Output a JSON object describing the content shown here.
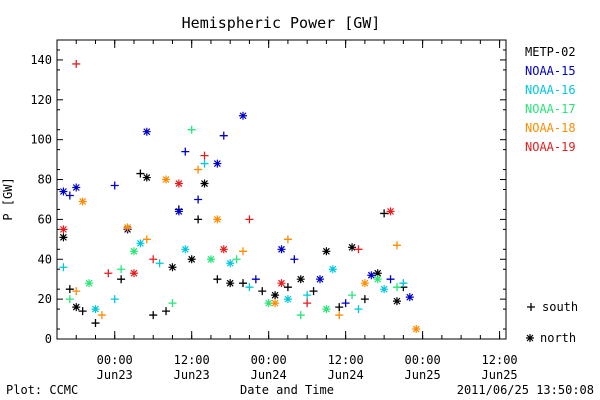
{
  "chart_data": {
    "type": "scatter",
    "title": "Hemispheric Power [GW]",
    "ylabel": "P [GW]",
    "xlabel": "Date and Time",
    "ylim": [
      0,
      150
    ],
    "xlim": [
      "2011-06-22 15:00",
      "2011-06-25 13:00"
    ],
    "grid": false,
    "legend_position": "right",
    "x_ticks": [
      {
        "time": "00:00",
        "date": "Jun23",
        "x": "2011-06-23 00:00"
      },
      {
        "time": "12:00",
        "date": "Jun23",
        "x": "2011-06-23 12:00"
      },
      {
        "time": "00:00",
        "date": "Jun24",
        "x": "2011-06-24 00:00"
      },
      {
        "time": "12:00",
        "date": "Jun24",
        "x": "2011-06-24 12:00"
      },
      {
        "time": "00:00",
        "date": "Jun25",
        "x": "2011-06-25 00:00"
      },
      {
        "time": "12:00",
        "date": "Jun25",
        "x": "2011-06-25 12:00"
      }
    ],
    "y_ticks": [
      0,
      20,
      40,
      60,
      80,
      100,
      120,
      140
    ],
    "markers": {
      "south": "+",
      "north": "*"
    },
    "series": [
      {
        "name": "METP-02",
        "color": "#000000",
        "points": [
          {
            "x": "2011-06-22 17:00",
            "y": 25,
            "h": "south"
          },
          {
            "x": "2011-06-22 19:00",
            "y": 14,
            "h": "south"
          },
          {
            "x": "2011-06-22 21:00",
            "y": 8,
            "h": "south"
          },
          {
            "x": "2011-06-23 01:00",
            "y": 30,
            "h": "south"
          },
          {
            "x": "2011-06-23 04:00",
            "y": 83,
            "h": "south"
          },
          {
            "x": "2011-06-23 06:00",
            "y": 12,
            "h": "south"
          },
          {
            "x": "2011-06-23 08:00",
            "y": 14,
            "h": "south"
          },
          {
            "x": "2011-06-23 10:00",
            "y": 65,
            "h": "south"
          },
          {
            "x": "2011-06-23 13:00",
            "y": 60,
            "h": "south"
          },
          {
            "x": "2011-06-23 16:00",
            "y": 30,
            "h": "south"
          },
          {
            "x": "2011-06-23 20:00",
            "y": 28,
            "h": "south"
          },
          {
            "x": "2011-06-23 23:00",
            "y": 24,
            "h": "south"
          },
          {
            "x": "2011-06-24 03:00",
            "y": 26,
            "h": "south"
          },
          {
            "x": "2011-06-24 07:00",
            "y": 24,
            "h": "south"
          },
          {
            "x": "2011-06-24 11:00",
            "y": 16,
            "h": "south"
          },
          {
            "x": "2011-06-24 15:00",
            "y": 20,
            "h": "south"
          },
          {
            "x": "2011-06-24 18:00",
            "y": 63,
            "h": "south"
          },
          {
            "x": "2011-06-24 21:00",
            "y": 26,
            "h": "south"
          },
          {
            "x": "2011-06-22 16:00",
            "y": 51,
            "h": "north"
          },
          {
            "x": "2011-06-22 18:00",
            "y": 16,
            "h": "north"
          },
          {
            "x": "2011-06-23 02:00",
            "y": 55,
            "h": "north"
          },
          {
            "x": "2011-06-23 05:00",
            "y": 81,
            "h": "north"
          },
          {
            "x": "2011-06-23 09:00",
            "y": 36,
            "h": "north"
          },
          {
            "x": "2011-06-23 12:00",
            "y": 40,
            "h": "north"
          },
          {
            "x": "2011-06-23 14:00",
            "y": 78,
            "h": "north"
          },
          {
            "x": "2011-06-23 18:00",
            "y": 28,
            "h": "north"
          },
          {
            "x": "2011-06-24 01:00",
            "y": 22,
            "h": "north"
          },
          {
            "x": "2011-06-24 05:00",
            "y": 30,
            "h": "north"
          },
          {
            "x": "2011-06-24 09:00",
            "y": 44,
            "h": "north"
          },
          {
            "x": "2011-06-24 13:00",
            "y": 46,
            "h": "north"
          },
          {
            "x": "2011-06-24 17:00",
            "y": 33,
            "h": "north"
          },
          {
            "x": "2011-06-24 20:00",
            "y": 19,
            "h": "north"
          }
        ]
      },
      {
        "name": "NOAA-15",
        "color": "#0000c8",
        "points": [
          {
            "x": "2011-06-22 17:00",
            "y": 72,
            "h": "south"
          },
          {
            "x": "2011-06-23 00:00",
            "y": 77,
            "h": "south"
          },
          {
            "x": "2011-06-23 02:00",
            "y": 55,
            "h": "south"
          },
          {
            "x": "2011-06-23 11:00",
            "y": 94,
            "h": "south"
          },
          {
            "x": "2011-06-23 13:00",
            "y": 70,
            "h": "south"
          },
          {
            "x": "2011-06-23 17:00",
            "y": 102,
            "h": "south"
          },
          {
            "x": "2011-06-23 22:00",
            "y": 30,
            "h": "south"
          },
          {
            "x": "2011-06-24 04:00",
            "y": 40,
            "h": "south"
          },
          {
            "x": "2011-06-24 12:00",
            "y": 18,
            "h": "south"
          },
          {
            "x": "2011-06-24 19:00",
            "y": 30,
            "h": "south"
          },
          {
            "x": "2011-06-22 16:00",
            "y": 74,
            "h": "north"
          },
          {
            "x": "2011-06-22 18:00",
            "y": 76,
            "h": "north"
          },
          {
            "x": "2011-06-23 05:00",
            "y": 104,
            "h": "north"
          },
          {
            "x": "2011-06-23 10:00",
            "y": 64,
            "h": "north"
          },
          {
            "x": "2011-06-23 16:00",
            "y": 88,
            "h": "north"
          },
          {
            "x": "2011-06-23 20:00",
            "y": 112,
            "h": "north"
          },
          {
            "x": "2011-06-24 02:00",
            "y": 45,
            "h": "north"
          },
          {
            "x": "2011-06-24 08:00",
            "y": 30,
            "h": "north"
          },
          {
            "x": "2011-06-24 16:00",
            "y": 32,
            "h": "north"
          },
          {
            "x": "2011-06-24 22:00",
            "y": 21,
            "h": "north"
          }
        ]
      },
      {
        "name": "NOAA-16",
        "color": "#00c8dc",
        "points": [
          {
            "x": "2011-06-22 16:00",
            "y": 36,
            "h": "south"
          },
          {
            "x": "2011-06-23 00:00",
            "y": 20,
            "h": "south"
          },
          {
            "x": "2011-06-23 07:00",
            "y": 38,
            "h": "south"
          },
          {
            "x": "2011-06-23 14:00",
            "y": 88,
            "h": "south"
          },
          {
            "x": "2011-06-23 21:00",
            "y": 26,
            "h": "south"
          },
          {
            "x": "2011-06-24 06:00",
            "y": 22,
            "h": "south"
          },
          {
            "x": "2011-06-24 14:00",
            "y": 15,
            "h": "south"
          },
          {
            "x": "2011-06-24 21:00",
            "y": 28,
            "h": "south"
          },
          {
            "x": "2011-06-22 21:00",
            "y": 15,
            "h": "north"
          },
          {
            "x": "2011-06-23 04:00",
            "y": 48,
            "h": "north"
          },
          {
            "x": "2011-06-23 11:00",
            "y": 45,
            "h": "north"
          },
          {
            "x": "2011-06-23 18:00",
            "y": 38,
            "h": "north"
          },
          {
            "x": "2011-06-24 03:00",
            "y": 20,
            "h": "north"
          },
          {
            "x": "2011-06-24 10:00",
            "y": 35,
            "h": "north"
          },
          {
            "x": "2011-06-24 18:00",
            "y": 25,
            "h": "north"
          }
        ]
      },
      {
        "name": "NOAA-17",
        "color": "#28e678",
        "points": [
          {
            "x": "2011-06-22 17:00",
            "y": 20,
            "h": "south"
          },
          {
            "x": "2011-06-23 01:00",
            "y": 35,
            "h": "south"
          },
          {
            "x": "2011-06-23 09:00",
            "y": 18,
            "h": "south"
          },
          {
            "x": "2011-06-23 12:00",
            "y": 105,
            "h": "south"
          },
          {
            "x": "2011-06-23 19:00",
            "y": 40,
            "h": "south"
          },
          {
            "x": "2011-06-24 05:00",
            "y": 12,
            "h": "south"
          },
          {
            "x": "2011-06-24 13:00",
            "y": 22,
            "h": "south"
          },
          {
            "x": "2011-06-24 20:00",
            "y": 26,
            "h": "south"
          },
          {
            "x": "2011-06-22 20:00",
            "y": 28,
            "h": "north"
          },
          {
            "x": "2011-06-23 03:00",
            "y": 44,
            "h": "north"
          },
          {
            "x": "2011-06-23 15:00",
            "y": 40,
            "h": "north"
          },
          {
            "x": "2011-06-24 00:00",
            "y": 18,
            "h": "north"
          },
          {
            "x": "2011-06-24 09:00",
            "y": 15,
            "h": "north"
          },
          {
            "x": "2011-06-24 17:00",
            "y": 30,
            "h": "north"
          }
        ]
      },
      {
        "name": "NOAA-18",
        "color": "#ff8c00",
        "points": [
          {
            "x": "2011-06-22 18:00",
            "y": 24,
            "h": "south"
          },
          {
            "x": "2011-06-22 22:00",
            "y": 12,
            "h": "south"
          },
          {
            "x": "2011-06-23 05:00",
            "y": 50,
            "h": "south"
          },
          {
            "x": "2011-06-23 13:00",
            "y": 85,
            "h": "south"
          },
          {
            "x": "2011-06-23 20:00",
            "y": 44,
            "h": "south"
          },
          {
            "x": "2011-06-24 03:00",
            "y": 50,
            "h": "south"
          },
          {
            "x": "2011-06-24 11:00",
            "y": 12,
            "h": "south"
          },
          {
            "x": "2011-06-24 20:00",
            "y": 47,
            "h": "south"
          },
          {
            "x": "2011-06-22 19:00",
            "y": 69,
            "h": "north"
          },
          {
            "x": "2011-06-23 02:00",
            "y": 56,
            "h": "north"
          },
          {
            "x": "2011-06-23 08:00",
            "y": 80,
            "h": "north"
          },
          {
            "x": "2011-06-23 16:00",
            "y": 60,
            "h": "north"
          },
          {
            "x": "2011-06-24 01:00",
            "y": 18,
            "h": "north"
          },
          {
            "x": "2011-06-24 15:00",
            "y": 28,
            "h": "north"
          },
          {
            "x": "2011-06-24 23:00",
            "y": 5,
            "h": "north"
          }
        ]
      },
      {
        "name": "NOAA-19",
        "color": "#e61e1e",
        "points": [
          {
            "x": "2011-06-22 18:00",
            "y": 138,
            "h": "south"
          },
          {
            "x": "2011-06-22 23:00",
            "y": 33,
            "h": "south"
          },
          {
            "x": "2011-06-23 06:00",
            "y": 40,
            "h": "south"
          },
          {
            "x": "2011-06-23 14:00",
            "y": 92,
            "h": "south"
          },
          {
            "x": "2011-06-23 21:00",
            "y": 60,
            "h": "south"
          },
          {
            "x": "2011-06-24 06:00",
            "y": 18,
            "h": "south"
          },
          {
            "x": "2011-06-24 14:00",
            "y": 45,
            "h": "south"
          },
          {
            "x": "2011-06-22 16:00",
            "y": 55,
            "h": "north"
          },
          {
            "x": "2011-06-23 03:00",
            "y": 33,
            "h": "north"
          },
          {
            "x": "2011-06-23 10:00",
            "y": 78,
            "h": "north"
          },
          {
            "x": "2011-06-23 17:00",
            "y": 45,
            "h": "north"
          },
          {
            "x": "2011-06-24 02:00",
            "y": 28,
            "h": "north"
          },
          {
            "x": "2011-06-24 19:00",
            "y": 64,
            "h": "north"
          }
        ]
      }
    ]
  },
  "legend": {
    "south_label": "south",
    "north_label": "north",
    "south_symbol": "+",
    "north_symbol": "*"
  },
  "footer": {
    "left": "Plot: CCMC",
    "center": "Date and Time",
    "right": "2011/06/25 13:50:08"
  }
}
